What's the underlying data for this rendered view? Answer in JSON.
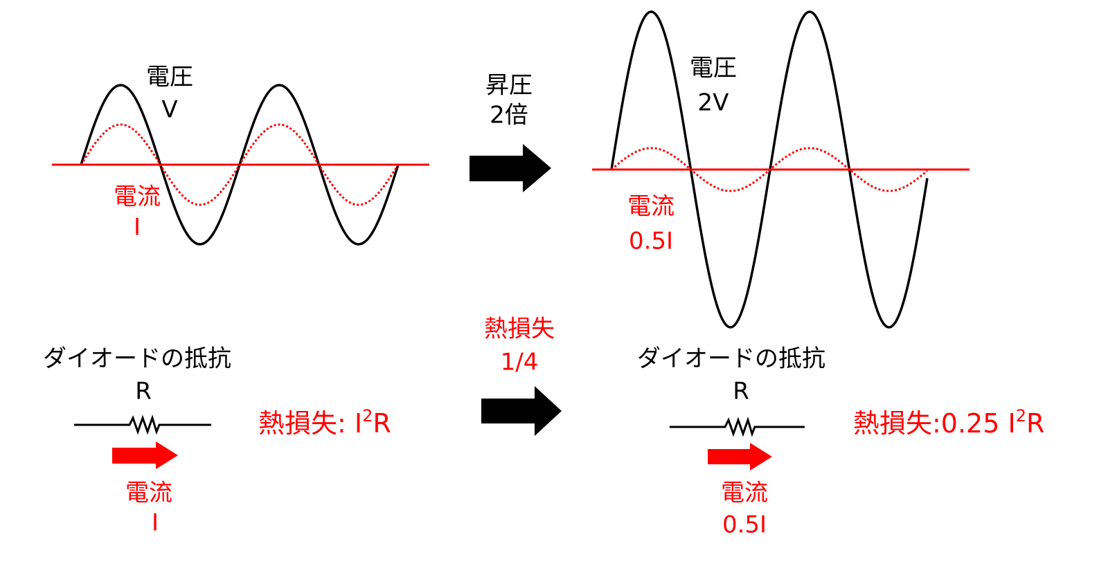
{
  "left_panel": {
    "voltage_label": "電圧",
    "voltage_value": "V",
    "current_label": "電流",
    "current_value": "I"
  },
  "step_up": {
    "label": "昇圧",
    "factor": "2倍"
  },
  "right_panel": {
    "voltage_label": "電圧",
    "voltage_value": "2V",
    "current_label": "電流",
    "current_value": "0.5I"
  },
  "left_circuit": {
    "title": "ダイオードの抵抗",
    "resistor": "R",
    "loss_prefix": "熱損失: I",
    "loss_exponent": "2",
    "loss_suffix": "R",
    "current_label": "電流",
    "current_value": "I"
  },
  "loss_change": {
    "label": "熱損失",
    "ratio": "1/4"
  },
  "right_circuit": {
    "title": "ダイオードの抵抗",
    "resistor": "R",
    "loss_prefix": "熱損失:0.25 I",
    "loss_exponent": "2",
    "loss_suffix": "R",
    "current_label": "電流",
    "current_value": "0.5I"
  }
}
